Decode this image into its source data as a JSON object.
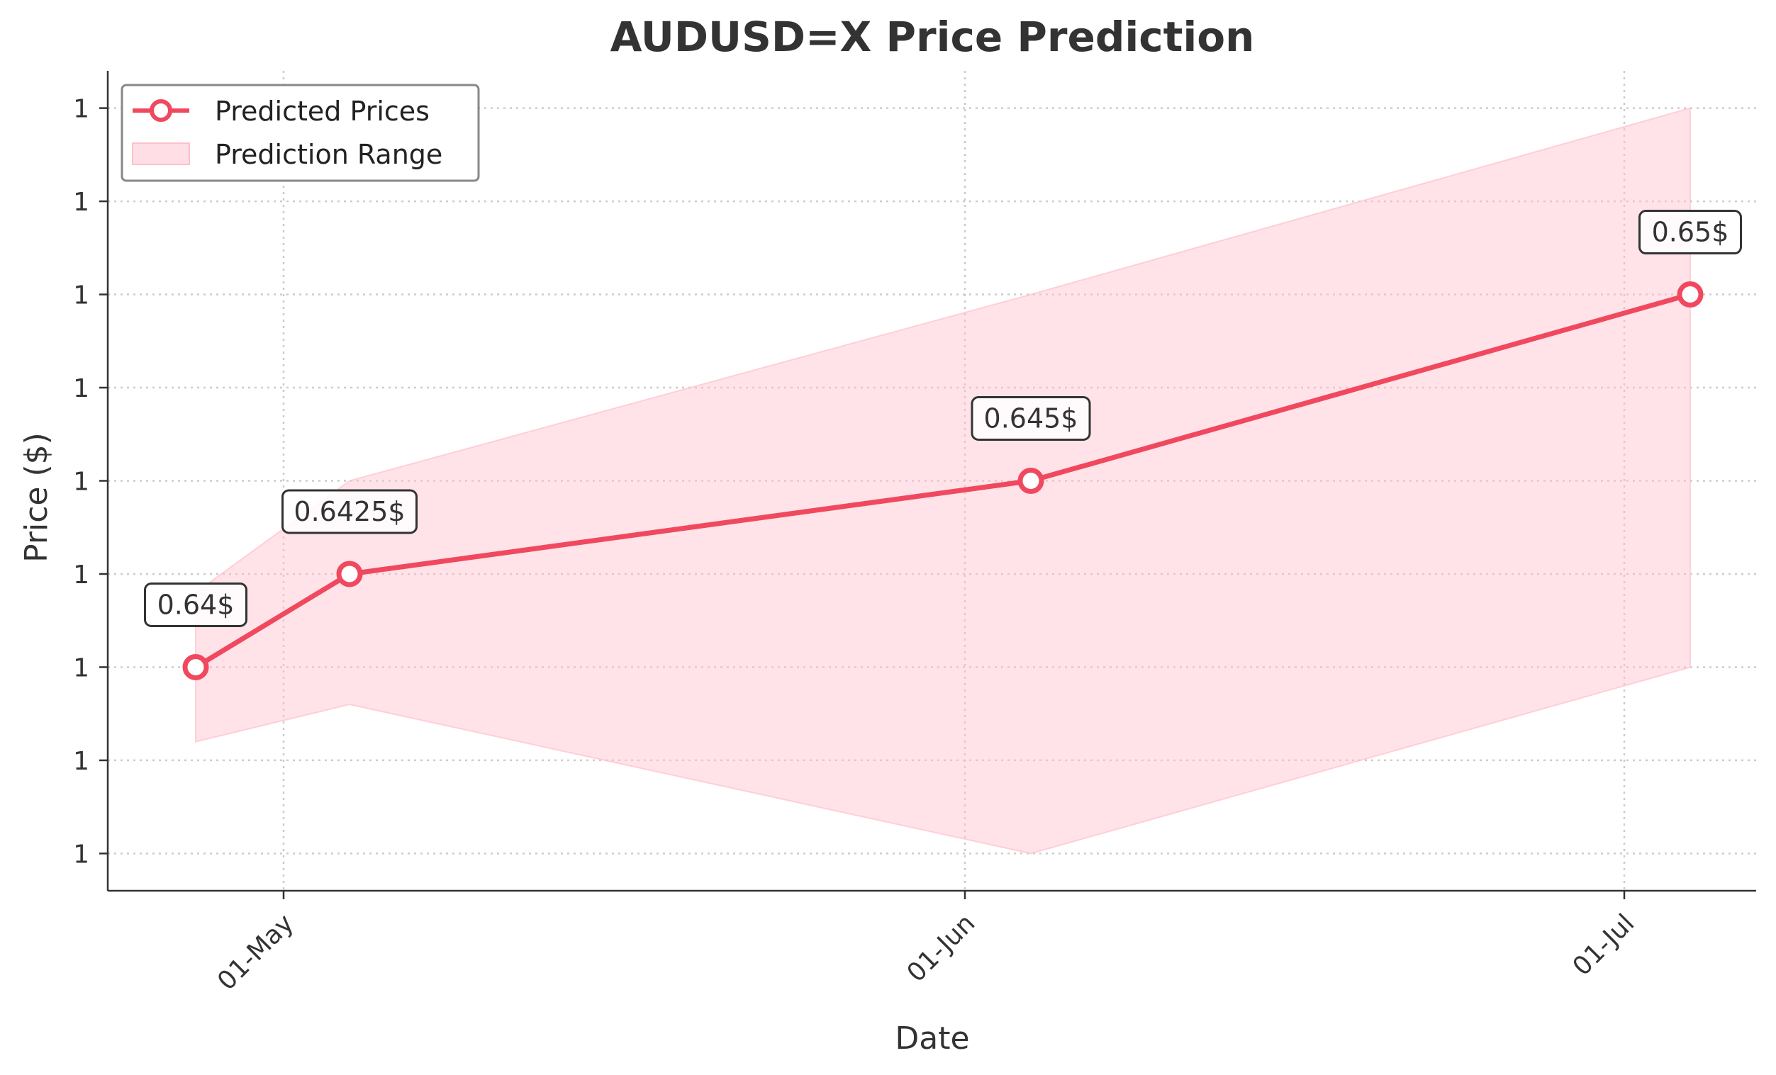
{
  "chart_data": {
    "type": "line",
    "title": "AUDUSD=X Price Prediction",
    "xlabel": "Date",
    "ylabel": "Price ($)",
    "x_ticks": [
      {
        "date": "2024-05-01",
        "label": "01-May"
      },
      {
        "date": "2024-06-01",
        "label": "01-Jun"
      },
      {
        "date": "2024-07-01",
        "label": "01-Jul"
      }
    ],
    "y_tick_values": [
      0.635,
      0.6375,
      0.64,
      0.6425,
      0.645,
      0.6475,
      0.65,
      0.6525,
      0.655
    ],
    "y_tick_label": "1",
    "xlim": [
      "2024-04-23",
      "2024-07-07"
    ],
    "ylim": [
      0.634,
      0.656
    ],
    "grid": true,
    "legend_position": "upper left",
    "series": [
      {
        "name": "Predicted Prices",
        "type": "line",
        "color": "#f0495f",
        "x": [
          "2024-04-27",
          "2024-05-04",
          "2024-06-04",
          "2024-07-04"
        ],
        "y": [
          0.64,
          0.6425,
          0.645,
          0.65
        ],
        "annotations": [
          "0.64$",
          "0.6425$",
          "0.645$",
          "0.65$"
        ]
      },
      {
        "name": "Prediction Range",
        "type": "area",
        "color": "#ffc0cb",
        "x": [
          "2024-04-27",
          "2024-05-04",
          "2024-06-04",
          "2024-07-04"
        ],
        "lower": [
          0.638,
          0.639,
          0.635,
          0.64
        ],
        "upper": [
          0.642,
          0.645,
          0.65,
          0.655
        ]
      }
    ]
  }
}
